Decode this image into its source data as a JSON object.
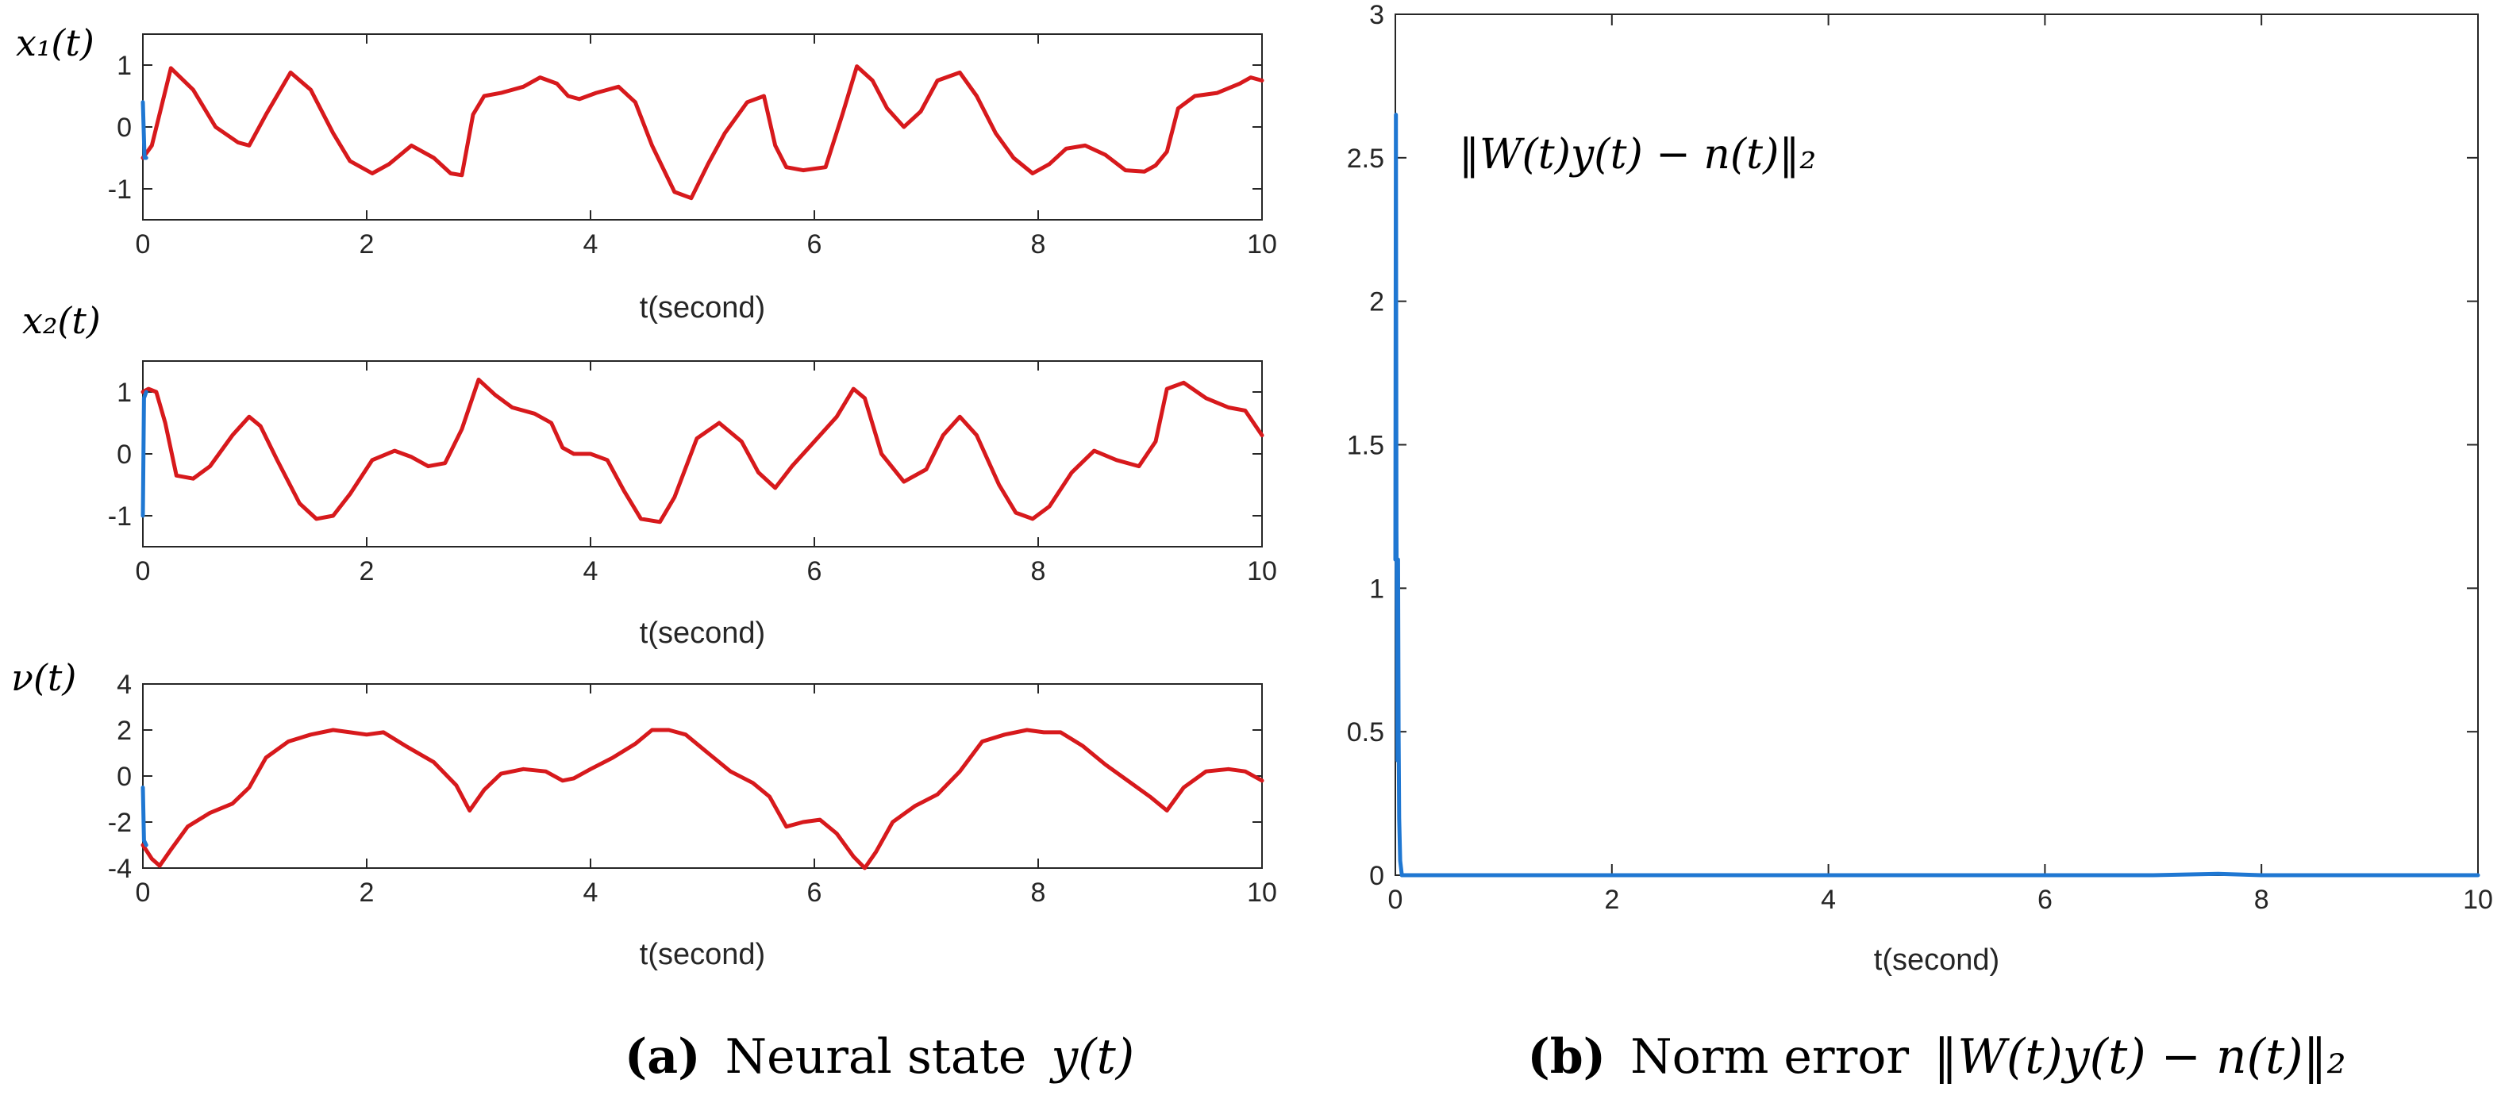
{
  "chart_data": [
    {
      "type": "line",
      "id": "x1",
      "ylabel": "x₁(t)",
      "xlabel": "t(second)",
      "xlim": [
        0,
        10
      ],
      "ylim": [
        -1.5,
        1.5
      ],
      "xticks": [
        0,
        2,
        4,
        6,
        8,
        10
      ],
      "yticks": [
        -1,
        0,
        1
      ],
      "grid": false,
      "series": [
        {
          "name": "x1",
          "color": "#d7191c",
          "x": [
            0,
            0.08,
            0.25,
            0.45,
            0.65,
            0.85,
            0.95,
            1.1,
            1.32,
            1.5,
            1.7,
            1.85,
            2.05,
            2.2,
            2.4,
            2.6,
            2.75,
            2.85,
            2.95,
            3.05,
            3.2,
            3.4,
            3.55,
            3.7,
            3.8,
            3.9,
            4.05,
            4.25,
            4.4,
            4.55,
            4.75,
            4.9,
            5.05,
            5.2,
            5.4,
            5.55,
            5.65,
            5.75,
            5.9,
            6.1,
            6.25,
            6.38,
            6.52,
            6.65,
            6.8,
            6.95,
            7.1,
            7.3,
            7.45,
            7.62,
            7.78,
            7.95,
            8.1,
            8.25,
            8.42,
            8.6,
            8.78,
            8.95,
            9.05,
            9.15,
            9.25,
            9.4,
            9.6,
            9.8,
            9.9,
            10
          ],
          "y": [
            -0.5,
            -0.3,
            0.95,
            0.6,
            0.0,
            -0.25,
            -0.3,
            0.2,
            0.88,
            0.6,
            -0.1,
            -0.55,
            -0.75,
            -0.6,
            -0.3,
            -0.5,
            -0.75,
            -0.78,
            0.2,
            0.5,
            0.55,
            0.65,
            0.8,
            0.7,
            0.5,
            0.45,
            0.55,
            0.65,
            0.4,
            -0.3,
            -1.05,
            -1.15,
            -0.6,
            -0.1,
            0.4,
            0.5,
            -0.3,
            -0.65,
            -0.7,
            -0.65,
            0.2,
            0.98,
            0.75,
            0.3,
            0.0,
            0.25,
            0.75,
            0.88,
            0.5,
            -0.1,
            -0.5,
            -0.75,
            -0.6,
            -0.35,
            -0.3,
            -0.45,
            -0.7,
            -0.72,
            -0.62,
            -0.4,
            0.3,
            0.5,
            0.55,
            0.7,
            0.8,
            0.75
          ]
        },
        {
          "name": "x1 initial transient",
          "color": "#1f77d2",
          "x": [
            0,
            0.015,
            0.03
          ],
          "y": [
            0.4,
            -0.5,
            -0.5
          ]
        }
      ]
    },
    {
      "type": "line",
      "id": "x2",
      "ylabel": "x₂(t)",
      "xlabel": "t(second)",
      "xlim": [
        0,
        10
      ],
      "ylim": [
        -1.5,
        1.5
      ],
      "xticks": [
        0,
        2,
        4,
        6,
        8,
        10
      ],
      "yticks": [
        -1,
        0,
        1
      ],
      "grid": false,
      "series": [
        {
          "name": "x2",
          "color": "#d7191c",
          "x": [
            0,
            0.05,
            0.12,
            0.2,
            0.3,
            0.45,
            0.6,
            0.8,
            0.95,
            1.05,
            1.2,
            1.4,
            1.55,
            1.7,
            1.85,
            2.05,
            2.25,
            2.4,
            2.55,
            2.7,
            2.85,
            3.0,
            3.15,
            3.3,
            3.5,
            3.65,
            3.75,
            3.85,
            4.0,
            4.15,
            4.3,
            4.45,
            4.62,
            4.75,
            4.95,
            5.15,
            5.35,
            5.5,
            5.65,
            5.8,
            6.0,
            6.2,
            6.35,
            6.45,
            6.6,
            6.8,
            7.0,
            7.15,
            7.3,
            7.45,
            7.65,
            7.8,
            7.95,
            8.1,
            8.3,
            8.5,
            8.7,
            8.9,
            9.05,
            9.15,
            9.3,
            9.5,
            9.7,
            9.85,
            10
          ],
          "y": [
            1.0,
            1.05,
            1.0,
            0.5,
            -0.35,
            -0.4,
            -0.2,
            0.3,
            0.6,
            0.45,
            -0.1,
            -0.8,
            -1.05,
            -1.0,
            -0.65,
            -0.1,
            0.05,
            -0.05,
            -0.2,
            -0.15,
            0.4,
            1.2,
            0.95,
            0.75,
            0.65,
            0.5,
            0.1,
            0.0,
            0.0,
            -0.1,
            -0.6,
            -1.05,
            -1.1,
            -0.7,
            0.25,
            0.5,
            0.2,
            -0.3,
            -0.55,
            -0.2,
            0.2,
            0.6,
            1.05,
            0.9,
            0.0,
            -0.45,
            -0.25,
            0.3,
            0.6,
            0.3,
            -0.5,
            -0.95,
            -1.05,
            -0.85,
            -0.3,
            0.05,
            -0.1,
            -0.2,
            0.2,
            1.05,
            1.15,
            0.9,
            0.75,
            0.7,
            0.3
          ]
        },
        {
          "name": "x2 initial transient",
          "color": "#1f77d2",
          "x": [
            0,
            0.01,
            0.03
          ],
          "y": [
            -1.0,
            0.9,
            1.0
          ]
        }
      ]
    },
    {
      "type": "line",
      "id": "nu",
      "ylabel": "ν(t)",
      "xlabel": "t(second)",
      "xlim": [
        0,
        10
      ],
      "ylim": [
        -4,
        4
      ],
      "xticks": [
        0,
        2,
        4,
        6,
        8,
        10
      ],
      "yticks": [
        -4,
        -2,
        0,
        2,
        4
      ],
      "grid": false,
      "series": [
        {
          "name": "nu",
          "color": "#d7191c",
          "x": [
            0,
            0.08,
            0.15,
            0.25,
            0.4,
            0.6,
            0.8,
            0.95,
            1.1,
            1.3,
            1.5,
            1.7,
            1.85,
            2.0,
            2.15,
            2.35,
            2.6,
            2.8,
            2.92,
            3.05,
            3.2,
            3.4,
            3.6,
            3.75,
            3.85,
            4.0,
            4.2,
            4.4,
            4.55,
            4.7,
            4.85,
            5.05,
            5.25,
            5.45,
            5.6,
            5.75,
            5.9,
            6.05,
            6.2,
            6.35,
            6.45,
            6.55,
            6.7,
            6.9,
            7.1,
            7.3,
            7.5,
            7.7,
            7.9,
            8.05,
            8.2,
            8.4,
            8.6,
            8.8,
            9.0,
            9.15,
            9.3,
            9.5,
            9.7,
            9.85,
            10
          ],
          "y": [
            -3.0,
            -3.6,
            -3.9,
            -3.2,
            -2.2,
            -1.6,
            -1.2,
            -0.5,
            0.8,
            1.5,
            1.8,
            2.0,
            1.9,
            1.8,
            1.9,
            1.3,
            0.6,
            -0.4,
            -1.5,
            -0.6,
            0.1,
            0.3,
            0.2,
            -0.2,
            -0.1,
            0.3,
            0.8,
            1.4,
            2.0,
            2.0,
            1.8,
            1.0,
            0.2,
            -0.3,
            -0.9,
            -2.2,
            -2.0,
            -1.9,
            -2.5,
            -3.5,
            -4.0,
            -3.3,
            -2.0,
            -1.3,
            -0.8,
            0.2,
            1.5,
            1.8,
            2.0,
            1.9,
            1.9,
            1.3,
            0.5,
            -0.2,
            -0.9,
            -1.5,
            -0.5,
            0.2,
            0.3,
            0.2,
            -0.2
          ]
        },
        {
          "name": "nu initial transient",
          "color": "#1f77d2",
          "x": [
            0,
            0.01,
            0.03
          ],
          "y": [
            -0.5,
            -2.8,
            -3.0
          ]
        }
      ]
    },
    {
      "type": "line",
      "id": "err",
      "xlabel": "t(second)",
      "xlim": [
        0,
        10
      ],
      "ylim": [
        0,
        3
      ],
      "xticks": [
        0,
        2,
        4,
        6,
        8,
        10
      ],
      "yticks": [
        0,
        0.5,
        1,
        1.5,
        2,
        2.5,
        3
      ],
      "grid": false,
      "annotation": "‖W(t)y(t) − n(t)‖₂",
      "series": [
        {
          "name": "norm error",
          "color": "#1f77d2",
          "x": [
            0,
            0.005,
            0.01,
            0.015,
            0.02,
            0.025,
            0.03,
            0.035,
            0.045,
            0.06,
            0.1,
            1,
            2,
            3,
            4,
            5,
            6,
            7,
            7.6,
            8,
            9,
            10
          ],
          "y": [
            1.1,
            2.65,
            1.2,
            0.9,
            0.4,
            1.1,
            0.5,
            0.2,
            0.05,
            0.0,
            0.0,
            0.0,
            0.0,
            0.0,
            0.0,
            0.0,
            0.0,
            0.0,
            0.005,
            0.0,
            0.0,
            0.0
          ]
        }
      ]
    }
  ],
  "captions": {
    "a": {
      "label": "(a)",
      "text": "Neural state",
      "math": "y(t)"
    },
    "b": {
      "label": "(b)",
      "text": "Norm error",
      "math": "‖W(t)y(t) − n(t)‖₂"
    }
  }
}
